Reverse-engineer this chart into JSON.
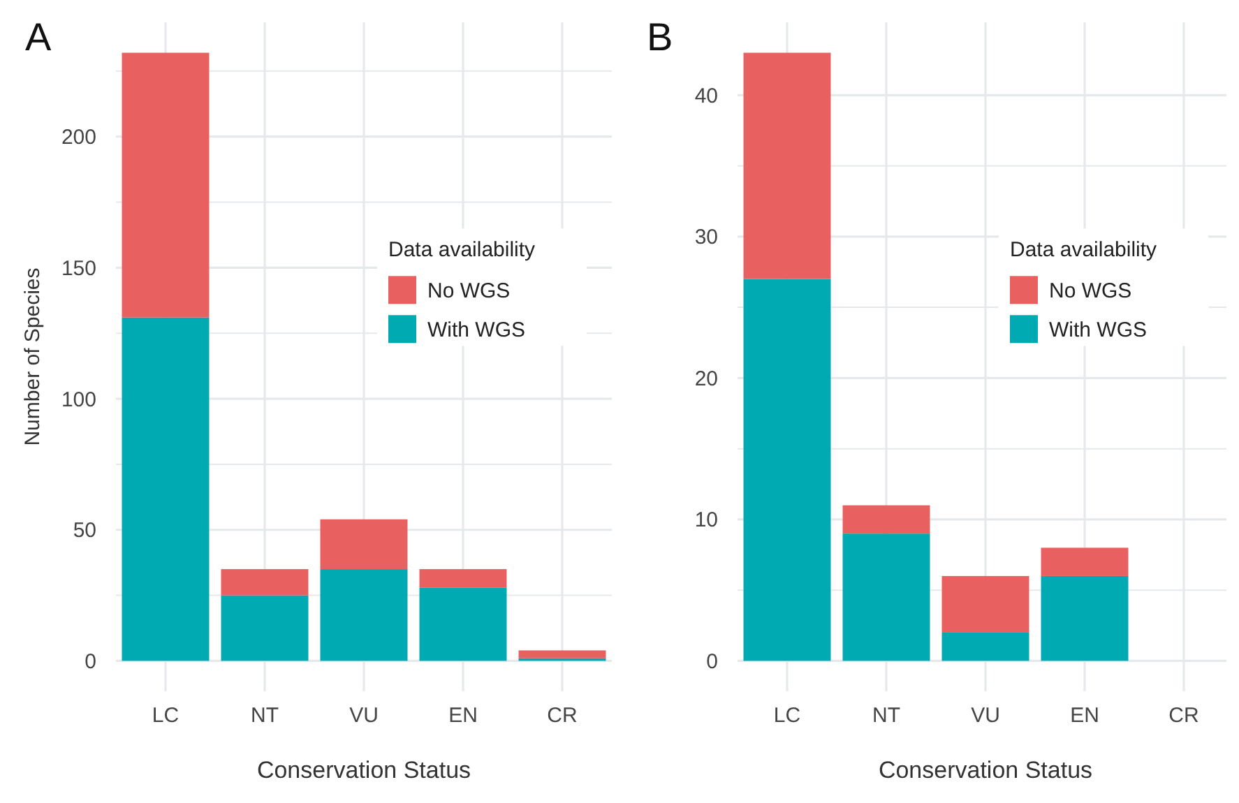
{
  "chart_data": [
    {
      "type": "bar",
      "title": "A",
      "xlabel": "Conservation Status",
      "ylabel": "Number of Species",
      "categories": [
        "LC",
        "NT",
        "VU",
        "EN",
        "CR"
      ],
      "stacked": true,
      "legend": "right",
      "legend_title": "Data availability",
      "grid": true,
      "ylim": [
        -11.6,
        243.6
      ],
      "yticks": [
        0,
        {
          "value": 25,
          "label": null
        },
        50,
        {
          "value": 75,
          "label": null
        },
        100,
        {
          "value": 125,
          "label": null
        },
        150,
        {
          "value": 175,
          "label": null
        },
        200,
        {
          "value": 225,
          "label": null
        }
      ],
      "series": [
        {
          "name": "With WGS",
          "color": "#00aab2",
          "values": [
            131,
            25,
            35,
            28,
            1
          ]
        },
        {
          "name": "No WGS",
          "color": "#e8605f",
          "values": [
            101,
            10,
            19,
            7,
            3
          ]
        }
      ]
    },
    {
      "type": "bar",
      "title": "B",
      "xlabel": "Conservation Status",
      "categories": [
        "LC",
        "NT",
        "VU",
        "EN",
        "CR"
      ],
      "stacked": true,
      "legend": "right",
      "legend_title": "Data availability",
      "grid": true,
      "ylim": [
        -2.15,
        45.15
      ],
      "yticks": [
        0,
        {
          "value": 5,
          "label": null
        },
        10,
        {
          "value": 15,
          "label": null
        },
        20,
        {
          "value": 25,
          "label": null
        },
        30,
        {
          "value": 35,
          "label": null
        },
        40
      ],
      "series": [
        {
          "name": "With WGS",
          "color": "#00aab2",
          "values": [
            27,
            9,
            2,
            6,
            0
          ]
        },
        {
          "name": "No WGS",
          "color": "#e8605f",
          "values": [
            16,
            2,
            4,
            2,
            0
          ]
        }
      ]
    }
  ]
}
